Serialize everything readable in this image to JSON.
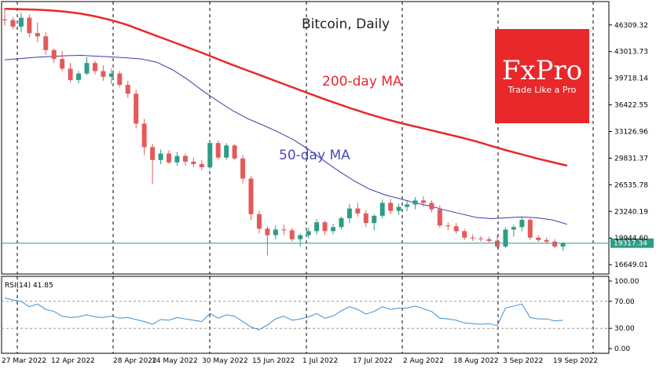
{
  "chart_data": {
    "type": "candlestick",
    "title": "Bitcoin, Daily",
    "x_tick_labels": [
      "27 Mar 2022",
      "12 Apr 2022",
      "28 Apr 2022",
      "14 May 2022",
      "30 May 2022",
      "15 Jun 2022",
      "1 Jul 2022",
      "17 Jul 2022",
      "2 Aug 2022",
      "18 Aug 2022",
      "3 Sep 2022",
      "19 Sep 2022"
    ],
    "y_tick_labels": [
      "46309.32",
      "43013.73",
      "39718.14",
      "36422.55",
      "33126.96",
      "29831.37",
      "26535.78",
      "23240.19",
      "19944.60",
      "16649.01"
    ],
    "y_ticks": [
      46309.32,
      43013.73,
      39718.14,
      36422.55,
      33126.96,
      29831.37,
      26535.78,
      23240.19,
      19944.6,
      16649.01
    ],
    "ylim": [
      15500,
      49200
    ],
    "current_price_label": "19317.34",
    "current_price": 19317.34,
    "ma200_label": "200-day MA",
    "ma50_label": "50-day MA",
    "ma200": [
      48300,
      48250,
      48200,
      48100,
      47950,
      47700,
      47350,
      46900,
      46350,
      45650,
      44950,
      44250,
      43550,
      42850,
      42100,
      41350,
      40650,
      39950,
      39250,
      38550,
      37850,
      37150,
      36500,
      35850,
      35250,
      34700,
      34200,
      33750,
      33300,
      32850,
      32400,
      31900,
      31350,
      30800,
      30300,
      29800,
      29350,
      28900
    ],
    "ma50": [
      42000,
      42150,
      42300,
      42400,
      42500,
      42550,
      42450,
      42350,
      42250,
      42100,
      41700,
      40800,
      39600,
      38200,
      36900,
      35700,
      34700,
      33900,
      33050,
      32100,
      30900,
      29500,
      28200,
      27000,
      26000,
      25300,
      24800,
      24300,
      23900,
      23400,
      22950,
      22500,
      22350,
      22450,
      22550,
      22450,
      22200,
      21650
    ],
    "candles": [
      [
        47000,
        48400,
        46200,
        46900
      ],
      [
        46900,
        47300,
        45800,
        46100
      ],
      [
        46100,
        47800,
        45400,
        47200
      ],
      [
        47200,
        47600,
        44800,
        45300
      ],
      [
        45300,
        46600,
        44200,
        44900
      ],
      [
        44900,
        45400,
        42600,
        43200
      ],
      [
        43200,
        43400,
        41600,
        42100
      ],
      [
        42100,
        43100,
        40600,
        40900
      ],
      [
        40900,
        41600,
        39200,
        39500
      ],
      [
        39500,
        40600,
        39100,
        40300
      ],
      [
        40300,
        42300,
        40100,
        41600
      ],
      [
        41600,
        41900,
        40200,
        40600
      ],
      [
        40600,
        41300,
        39400,
        39900
      ],
      [
        39900,
        40900,
        39000,
        40300
      ],
      [
        40300,
        40600,
        38600,
        38900
      ],
      [
        38900,
        39400,
        37300,
        37800
      ],
      [
        37800,
        38300,
        33500,
        34100
      ],
      [
        34100,
        34700,
        30200,
        31200
      ],
      [
        31200,
        31600,
        26600,
        29600
      ],
      [
        29600,
        30900,
        29100,
        30400
      ],
      [
        30400,
        30800,
        29100,
        29300
      ],
      [
        29300,
        30600,
        28900,
        30100
      ],
      [
        30100,
        30400,
        28900,
        29400
      ],
      [
        29400,
        29900,
        28700,
        29100
      ],
      [
        29100,
        29600,
        28300,
        28700
      ],
      [
        28700,
        32100,
        28500,
        31700
      ],
      [
        31700,
        32000,
        29700,
        29900
      ],
      [
        29900,
        31700,
        29600,
        31400
      ],
      [
        31400,
        31600,
        29600,
        29800
      ],
      [
        29800,
        30200,
        26700,
        27300
      ],
      [
        27300,
        27600,
        22200,
        22900
      ],
      [
        22900,
        23300,
        20500,
        21100
      ],
      [
        21100,
        21400,
        17800,
        20300
      ],
      [
        20300,
        21500,
        19800,
        21000
      ],
      [
        21000,
        21600,
        20300,
        20900
      ],
      [
        20900,
        21200,
        19500,
        19800
      ],
      [
        19800,
        20500,
        18900,
        20300
      ],
      [
        20300,
        21200,
        19900,
        20800
      ],
      [
        20800,
        22300,
        20400,
        21900
      ],
      [
        21900,
        22100,
        20300,
        20800
      ],
      [
        20800,
        21700,
        20400,
        21300
      ],
      [
        21300,
        22600,
        21000,
        22400
      ],
      [
        22400,
        24200,
        21800,
        23600
      ],
      [
        23600,
        24300,
        22600,
        23000
      ],
      [
        23000,
        23400,
        21300,
        21800
      ],
      [
        21800,
        22900,
        20900,
        22700
      ],
      [
        22700,
        24700,
        22400,
        24300
      ],
      [
        24300,
        24800,
        22900,
        23300
      ],
      [
        23300,
        24200,
        22800,
        23800
      ],
      [
        23800,
        24500,
        23300,
        24100
      ],
      [
        24100,
        25000,
        23500,
        24600
      ],
      [
        24600,
        25100,
        23800,
        24300
      ],
      [
        24300,
        24600,
        23100,
        23500
      ],
      [
        23500,
        24000,
        21200,
        21500
      ],
      [
        21500,
        21900,
        20900,
        21400
      ],
      [
        21400,
        21800,
        20500,
        20800
      ],
      [
        20800,
        21100,
        19700,
        20000
      ],
      [
        20000,
        20400,
        19600,
        19900
      ],
      [
        19900,
        20200,
        19500,
        19800
      ],
      [
        19800,
        20100,
        19400,
        19600
      ],
      [
        19600,
        20200,
        18700,
        18900
      ],
      [
        18900,
        21300,
        18700,
        21000
      ],
      [
        21000,
        21600,
        20100,
        21300
      ],
      [
        21300,
        22600,
        20800,
        22200
      ],
      [
        22200,
        22400,
        19700,
        20000
      ],
      [
        20000,
        20300,
        19500,
        19700
      ],
      [
        19700,
        20000,
        19200,
        19500
      ],
      [
        19500,
        19800,
        18700,
        18900
      ],
      [
        18900,
        19500,
        18400,
        19300
      ]
    ],
    "rsi_label": "RSI(14) 41.85",
    "rsi_ticks": [
      100,
      70,
      30,
      0
    ],
    "rsi_tick_labels": [
      "100.00",
      "70.00",
      "30.00",
      "0.00"
    ],
    "rsi": [
      75,
      72,
      70,
      62,
      66,
      58,
      55,
      48,
      46,
      47,
      50,
      47,
      46,
      48,
      45,
      46,
      43,
      40,
      36,
      43,
      42,
      46,
      44,
      42,
      40,
      52,
      45,
      50,
      48,
      40,
      32,
      28,
      35,
      44,
      48,
      42,
      44,
      47,
      52,
      45,
      48,
      56,
      62,
      58,
      51,
      55,
      62,
      58,
      60,
      60,
      63,
      59,
      55,
      45,
      44,
      42,
      38,
      37,
      36,
      37,
      34,
      60,
      63,
      66,
      46,
      44,
      44,
      41,
      42
    ]
  },
  "logo": {
    "text": "FxPro",
    "tagline": "Trade Like a Pro",
    "color": "#e8282b"
  },
  "colors": {
    "ma200": "#e8282b",
    "ma50": "#3a3aa8",
    "up": "#2e9c86",
    "down": "#e35a5a",
    "rsi": "#3e8fd8",
    "price_line": "#2e9c86"
  }
}
